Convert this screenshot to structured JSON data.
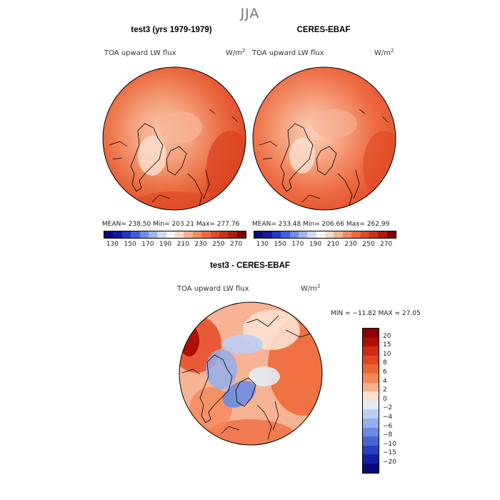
{
  "season": "JJA",
  "panels": [
    {
      "title": "test3 (yrs 1979-1979)",
      "variable": "TOA upward LW flux",
      "units": "W/m",
      "units_exp": "2",
      "stats": "MEAN= 238.50   Min= 203.21   Max= 277.76"
    },
    {
      "title": "CERES-EBAF",
      "variable": "TOA upward LW flux",
      "units": "W/m",
      "units_exp": "2",
      "stats": "MEAN= 233.48   Min= 206.66   Max= 262.99"
    },
    {
      "title": "test3 - CERES-EBAF",
      "variable": "TOA upward LW flux",
      "units": "W/m",
      "units_exp": "2",
      "stats": "MIN = −11.82 MAX =  27.05"
    }
  ],
  "colorbar_abs": {
    "ticks": [
      "130",
      "150",
      "170",
      "190",
      "210",
      "230",
      "250",
      "270"
    ],
    "colors": [
      "#0a0a7a",
      "#13199f",
      "#2238c4",
      "#3d5ee0",
      "#6e8ee8",
      "#9fb5ef",
      "#cfdcf6",
      "#f4f4f4",
      "#fbd9c8",
      "#f7b394",
      "#f28a62",
      "#ea6a3f",
      "#e0492a",
      "#cf2e17",
      "#b01a0c",
      "#7f0000"
    ]
  },
  "colorbar_diff": {
    "ticks": [
      "20",
      "15",
      "10",
      "8",
      "6",
      "4",
      "2",
      "0",
      "−2",
      "−4",
      "−6",
      "−8",
      "−10",
      "−15",
      "−20"
    ],
    "colors": [
      "#8a0000",
      "#b00f08",
      "#cf2a14",
      "#e2461f",
      "#ee6535",
      "#f5875a",
      "#fab08c",
      "#fde0d0",
      "#e4ecfa",
      "#bccdf4",
      "#93aeec",
      "#6b8be2",
      "#4766d4",
      "#2641c0",
      "#1420a2",
      "#080a7d"
    ]
  },
  "chart_data": [
    {
      "type": "heatmap",
      "title": "test3 (yrs 1979-1979)",
      "projection": "north polar stereographic",
      "variable": "TOA upward LW flux",
      "units": "W/m2",
      "mean": 238.5,
      "min": 203.21,
      "max": 277.76,
      "colorbar_levels": [
        130,
        150,
        170,
        190,
        210,
        230,
        250,
        270
      ]
    },
    {
      "type": "heatmap",
      "title": "CERES-EBAF",
      "projection": "north polar stereographic",
      "variable": "TOA upward LW flux",
      "units": "W/m2",
      "mean": 233.48,
      "min": 206.66,
      "max": 262.99,
      "colorbar_levels": [
        130,
        150,
        170,
        190,
        210,
        230,
        250,
        270
      ]
    },
    {
      "type": "heatmap",
      "title": "test3 - CERES-EBAF",
      "projection": "north polar stereographic",
      "variable": "TOA upward LW flux",
      "units": "W/m2",
      "min": -11.82,
      "max": 27.05,
      "colorbar_levels": [
        -20,
        -15,
        -10,
        -8,
        -6,
        -4,
        -2,
        0,
        2,
        4,
        6,
        8,
        10,
        15,
        20
      ]
    }
  ]
}
